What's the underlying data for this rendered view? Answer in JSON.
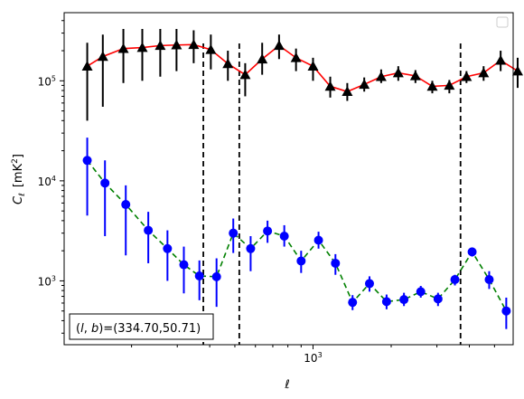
{
  "chart_data": {
    "type": "scatter",
    "xscale": "log",
    "yscale": "log",
    "xlim": [
      110,
      5900
    ],
    "ylim": [
      230,
      480000
    ],
    "xlabel": "ℓ",
    "ylabel_main": "C",
    "ylabel_sub": "ℓ",
    "ylabel_unit": "[mK",
    "ylabel_unit_sup": "2",
    "ylabel_unit_close": "]",
    "x_major_ticks": [
      {
        "value": 1000,
        "base": "10",
        "exp": "3"
      }
    ],
    "y_major_ticks": [
      {
        "value": 1000,
        "base": "10",
        "exp": "3"
      },
      {
        "value": 10000,
        "base": "10",
        "exp": "4"
      },
      {
        "value": 100000,
        "base": "10",
        "exp": "5"
      }
    ],
    "vlines": [
      378,
      520,
      3700
    ],
    "annotation": {
      "prefix": "(",
      "l": "l",
      "sep": ", ",
      "b": "b",
      "suffix": ")=(334.70,50.71)"
    },
    "legend_placement": "upper right",
    "series": [
      {
        "marker": "triangle",
        "marker_color": "#000000",
        "line_color": "#ff0000",
        "line_style": "solid",
        "points": [
          {
            "x": 135,
            "y": 140000,
            "lo": 40000,
            "hi": 240000
          },
          {
            "x": 155,
            "y": 175000,
            "lo": 55000,
            "hi": 290000
          },
          {
            "x": 186,
            "y": 210000,
            "lo": 95000,
            "hi": 330000
          },
          {
            "x": 220,
            "y": 215000,
            "lo": 100000,
            "hi": 330000
          },
          {
            "x": 258,
            "y": 225000,
            "lo": 110000,
            "hi": 330000
          },
          {
            "x": 298,
            "y": 228000,
            "lo": 125000,
            "hi": 330000
          },
          {
            "x": 347,
            "y": 230000,
            "lo": 150000,
            "hi": 320000
          },
          {
            "x": 404,
            "y": 205000,
            "lo": 130000,
            "hi": 290000
          },
          {
            "x": 470,
            "y": 148000,
            "lo": 100000,
            "hi": 200000
          },
          {
            "x": 548,
            "y": 115000,
            "lo": 70000,
            "hi": 150000
          },
          {
            "x": 637,
            "y": 165000,
            "lo": 115000,
            "hi": 240000
          },
          {
            "x": 740,
            "y": 225000,
            "lo": 165000,
            "hi": 290000
          },
          {
            "x": 860,
            "y": 170000,
            "lo": 125000,
            "hi": 210000
          },
          {
            "x": 1000,
            "y": 140000,
            "lo": 100000,
            "hi": 170000
          },
          {
            "x": 1165,
            "y": 88000,
            "lo": 68000,
            "hi": 110000
          },
          {
            "x": 1355,
            "y": 78000,
            "lo": 63000,
            "hi": 95000
          },
          {
            "x": 1575,
            "y": 92000,
            "lo": 78000,
            "hi": 108000
          },
          {
            "x": 1830,
            "y": 110000,
            "lo": 95000,
            "hi": 130000
          },
          {
            "x": 2130,
            "y": 120000,
            "lo": 100000,
            "hi": 140000
          },
          {
            "x": 2480,
            "y": 112000,
            "lo": 95000,
            "hi": 128000
          },
          {
            "x": 2880,
            "y": 88000,
            "lo": 75000,
            "hi": 100000
          },
          {
            "x": 3350,
            "y": 90000,
            "lo": 75000,
            "hi": 102000
          },
          {
            "x": 3900,
            "y": 110000,
            "lo": 95000,
            "hi": 125000
          },
          {
            "x": 4540,
            "y": 120000,
            "lo": 100000,
            "hi": 140000
          },
          {
            "x": 5280,
            "y": 160000,
            "lo": 125000,
            "hi": 200000
          },
          {
            "x": 6140,
            "y": 125000,
            "lo": 85000,
            "hi": 170000
          }
        ]
      },
      {
        "marker": "circle",
        "marker_color": "#0000ff",
        "line_color": "#008000",
        "line_style": "dashed",
        "points": [
          {
            "x": 135,
            "y": 16000,
            "lo": 4500,
            "hi": 27000
          },
          {
            "x": 158,
            "y": 9500,
            "lo": 2800,
            "hi": 16000
          },
          {
            "x": 190,
            "y": 5800,
            "lo": 1800,
            "hi": 9000
          },
          {
            "x": 232,
            "y": 3200,
            "lo": 1500,
            "hi": 4900
          },
          {
            "x": 275,
            "y": 2100,
            "lo": 1000,
            "hi": 3200
          },
          {
            "x": 318,
            "y": 1450,
            "lo": 750,
            "hi": 2200
          },
          {
            "x": 365,
            "y": 1120,
            "lo": 640,
            "hi": 1600
          },
          {
            "x": 425,
            "y": 1100,
            "lo": 550,
            "hi": 1680
          },
          {
            "x": 493,
            "y": 3000,
            "lo": 1900,
            "hi": 4200
          },
          {
            "x": 575,
            "y": 2100,
            "lo": 1250,
            "hi": 2800
          },
          {
            "x": 668,
            "y": 3150,
            "lo": 2400,
            "hi": 4000
          },
          {
            "x": 775,
            "y": 2800,
            "lo": 2200,
            "hi": 3600
          },
          {
            "x": 900,
            "y": 1580,
            "lo": 1200,
            "hi": 2000
          },
          {
            "x": 1050,
            "y": 2550,
            "lo": 2100,
            "hi": 3100
          },
          {
            "x": 1220,
            "y": 1500,
            "lo": 1150,
            "hi": 1850
          },
          {
            "x": 1420,
            "y": 610,
            "lo": 510,
            "hi": 720
          },
          {
            "x": 1650,
            "y": 940,
            "lo": 780,
            "hi": 1110
          },
          {
            "x": 1920,
            "y": 620,
            "lo": 520,
            "hi": 730
          },
          {
            "x": 2240,
            "y": 650,
            "lo": 560,
            "hi": 760
          },
          {
            "x": 2600,
            "y": 780,
            "lo": 680,
            "hi": 890
          },
          {
            "x": 3030,
            "y": 660,
            "lo": 560,
            "hi": 760
          },
          {
            "x": 3520,
            "y": 1030,
            "lo": 900,
            "hi": 1150
          },
          {
            "x": 4100,
            "y": 1950,
            "lo": 1750,
            "hi": 2150
          },
          {
            "x": 4770,
            "y": 1030,
            "lo": 830,
            "hi": 1250
          },
          {
            "x": 5550,
            "y": 500,
            "lo": 330,
            "hi": 680
          }
        ]
      }
    ]
  }
}
